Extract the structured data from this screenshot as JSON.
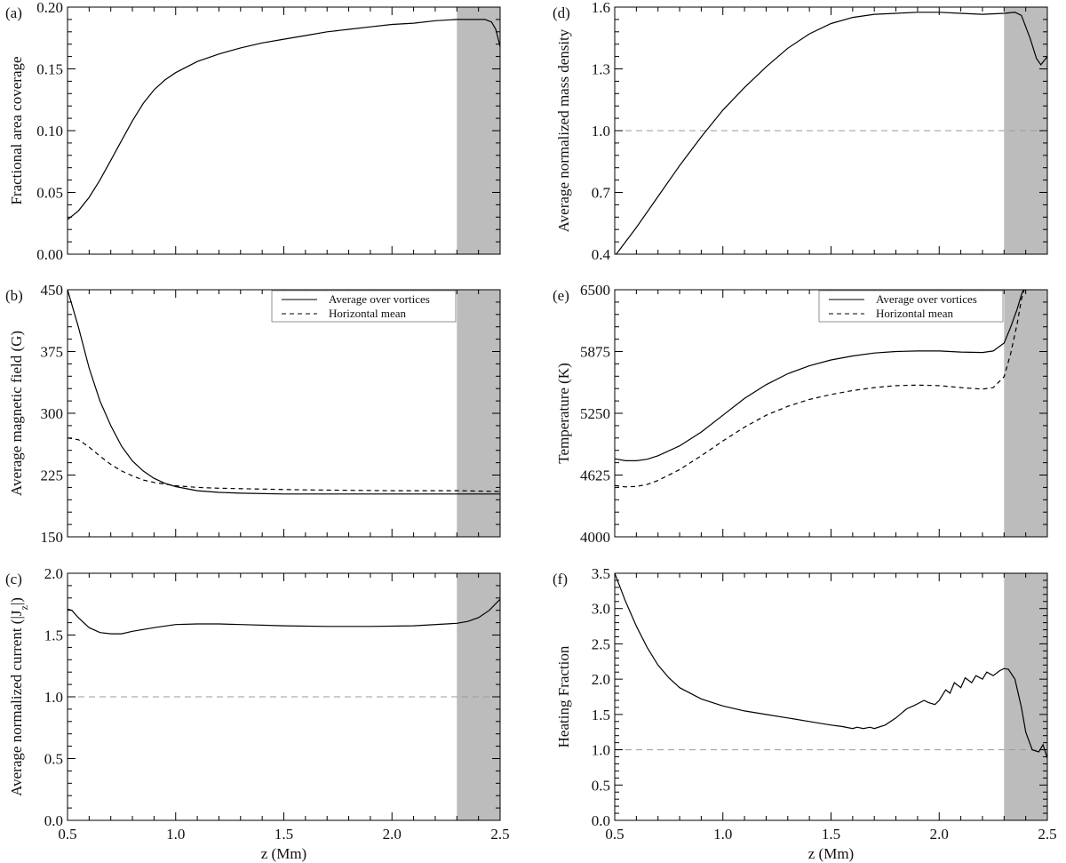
{
  "figure": {
    "xlabel": "z (Mm)",
    "x_ticks": [
      "0.5",
      "1.0",
      "1.5",
      "2.0",
      "2.5"
    ],
    "shade_color": "#bcbcbc",
    "line_color": "#000000",
    "ref_line_color": "#9a9a9a"
  },
  "legend": {
    "solid_label": "Average over vortices",
    "dashed_label": "Horizontal mean"
  },
  "chart_data": [
    {
      "id": "a",
      "panel_label": "(a)",
      "type": "line",
      "ylabel": "Fractional area coverage",
      "xlim": [
        0.5,
        2.5
      ],
      "ylim": [
        0.0,
        0.2
      ],
      "y_ticks": [
        "0.00",
        "0.05",
        "0.10",
        "0.15",
        "0.20"
      ],
      "y_tick_values": [
        0.0,
        0.05,
        0.1,
        0.15,
        0.2
      ],
      "shaded_region": [
        2.3,
        2.5
      ],
      "reference_line": null,
      "series": [
        {
          "name": "Average over vortices",
          "style": "solid",
          "x": [
            0.5,
            0.55,
            0.6,
            0.65,
            0.7,
            0.75,
            0.8,
            0.85,
            0.9,
            0.95,
            1.0,
            1.1,
            1.2,
            1.3,
            1.4,
            1.5,
            1.6,
            1.7,
            1.8,
            1.9,
            2.0,
            2.1,
            2.2,
            2.3,
            2.35,
            2.4,
            2.43,
            2.46,
            2.48,
            2.5
          ],
          "y": [
            0.028,
            0.035,
            0.046,
            0.06,
            0.076,
            0.092,
            0.108,
            0.122,
            0.133,
            0.141,
            0.147,
            0.156,
            0.162,
            0.167,
            0.171,
            0.174,
            0.177,
            0.18,
            0.182,
            0.184,
            0.186,
            0.187,
            0.189,
            0.19,
            0.19,
            0.19,
            0.19,
            0.188,
            0.182,
            0.168
          ]
        }
      ]
    },
    {
      "id": "b",
      "panel_label": "(b)",
      "type": "line",
      "ylabel": "Average magnetic field (G)",
      "xlim": [
        0.5,
        2.5
      ],
      "ylim": [
        150,
        450
      ],
      "y_ticks": [
        "150",
        "225",
        "300",
        "375",
        "450"
      ],
      "y_tick_values": [
        150,
        225,
        300,
        375,
        450
      ],
      "shaded_region": [
        2.3,
        2.5
      ],
      "reference_line": null,
      "legend": true,
      "series": [
        {
          "name": "Average over vortices",
          "style": "solid",
          "x": [
            0.5,
            0.55,
            0.6,
            0.65,
            0.7,
            0.75,
            0.8,
            0.85,
            0.9,
            0.95,
            1.0,
            1.1,
            1.2,
            1.3,
            1.5,
            1.75,
            2.0,
            2.3,
            2.5
          ],
          "y": [
            450,
            405,
            355,
            315,
            285,
            260,
            242,
            230,
            221,
            215,
            211,
            206,
            204,
            203,
            202,
            202,
            202,
            202,
            202
          ]
        },
        {
          "name": "Horizontal mean",
          "style": "dashed",
          "x": [
            0.5,
            0.55,
            0.6,
            0.65,
            0.7,
            0.75,
            0.8,
            0.85,
            0.9,
            1.0,
            1.1,
            1.2,
            1.4,
            1.6,
            2.0,
            2.3,
            2.5
          ],
          "y": [
            270,
            268,
            259,
            248,
            238,
            230,
            224,
            219,
            216,
            212,
            210,
            209,
            208,
            207,
            206,
            206,
            205
          ]
        }
      ]
    },
    {
      "id": "c",
      "panel_label": "(c)",
      "type": "line",
      "ylabel": "Average normalized current (|J_z|)",
      "xlim": [
        0.5,
        2.5
      ],
      "ylim": [
        0.0,
        2.0
      ],
      "y_ticks": [
        "0.0",
        "0.5",
        "1.0",
        "1.5",
        "2.0"
      ],
      "y_tick_values": [
        0.0,
        0.5,
        1.0,
        1.5,
        2.0
      ],
      "shaded_region": [
        2.3,
        2.5
      ],
      "reference_line": 1.0,
      "series": [
        {
          "name": "Average over vortices",
          "style": "solid",
          "x": [
            0.5,
            0.52,
            0.55,
            0.6,
            0.65,
            0.7,
            0.75,
            0.8,
            0.9,
            1.0,
            1.1,
            1.2,
            1.3,
            1.5,
            1.7,
            1.9,
            2.1,
            2.3,
            2.35,
            2.4,
            2.45,
            2.5
          ],
          "y": [
            1.71,
            1.7,
            1.64,
            1.56,
            1.52,
            1.51,
            1.51,
            1.53,
            1.56,
            1.585,
            1.59,
            1.59,
            1.585,
            1.575,
            1.57,
            1.57,
            1.575,
            1.595,
            1.61,
            1.64,
            1.7,
            1.79
          ]
        }
      ]
    },
    {
      "id": "d",
      "panel_label": "(d)",
      "type": "line",
      "ylabel": "Average normalized  mass density",
      "xlim": [
        0.5,
        2.5
      ],
      "ylim": [
        0.4,
        1.6
      ],
      "y_ticks": [
        "0.4",
        "0.7",
        "1.0",
        "1.3",
        "1.6"
      ],
      "y_tick_values": [
        0.4,
        0.7,
        1.0,
        1.3,
        1.6
      ],
      "shaded_region": [
        2.3,
        2.5
      ],
      "reference_line": 1.0,
      "series": [
        {
          "name": "Average over vortices",
          "style": "solid",
          "x": [
            0.5,
            0.6,
            0.7,
            0.8,
            0.9,
            1.0,
            1.1,
            1.2,
            1.3,
            1.4,
            1.5,
            1.6,
            1.7,
            1.8,
            1.9,
            2.0,
            2.1,
            2.2,
            2.3,
            2.35,
            2.38,
            2.42,
            2.45,
            2.47,
            2.5
          ],
          "y": [
            0.39,
            0.53,
            0.68,
            0.83,
            0.97,
            1.1,
            1.21,
            1.31,
            1.4,
            1.47,
            1.52,
            1.55,
            1.565,
            1.57,
            1.575,
            1.575,
            1.57,
            1.565,
            1.57,
            1.575,
            1.56,
            1.45,
            1.35,
            1.32,
            1.36
          ]
        }
      ]
    },
    {
      "id": "e",
      "panel_label": "(e)",
      "type": "line",
      "ylabel": "Temperature (K)",
      "xlim": [
        0.5,
        2.5
      ],
      "ylim": [
        4000,
        6500
      ],
      "y_ticks": [
        "4000",
        "4625",
        "5250",
        "5875",
        "6500"
      ],
      "y_tick_values": [
        4000,
        4625,
        5250,
        5875,
        6500
      ],
      "shaded_region": [
        2.3,
        2.5
      ],
      "reference_line": null,
      "legend": true,
      "series": [
        {
          "name": "Average over vortices",
          "style": "solid",
          "x": [
            0.5,
            0.55,
            0.6,
            0.65,
            0.7,
            0.8,
            0.9,
            1.0,
            1.1,
            1.2,
            1.3,
            1.4,
            1.5,
            1.6,
            1.7,
            1.8,
            1.9,
            2.0,
            2.1,
            2.2,
            2.25,
            2.3,
            2.33,
            2.36,
            2.38,
            2.4
          ],
          "y": [
            4790,
            4770,
            4770,
            4785,
            4820,
            4920,
            5060,
            5230,
            5400,
            5540,
            5650,
            5730,
            5790,
            5830,
            5860,
            5875,
            5880,
            5880,
            5870,
            5865,
            5880,
            5960,
            6120,
            6300,
            6450,
            6560
          ]
        },
        {
          "name": "Horizontal mean",
          "style": "dashed",
          "x": [
            0.5,
            0.55,
            0.6,
            0.65,
            0.7,
            0.8,
            0.9,
            1.0,
            1.1,
            1.2,
            1.3,
            1.4,
            1.5,
            1.6,
            1.7,
            1.8,
            1.9,
            2.0,
            2.1,
            2.2,
            2.25,
            2.3,
            2.33,
            2.36,
            2.38,
            2.4
          ],
          "y": [
            4520,
            4505,
            4510,
            4530,
            4570,
            4680,
            4820,
            4970,
            5110,
            5230,
            5320,
            5390,
            5440,
            5480,
            5510,
            5530,
            5535,
            5530,
            5510,
            5495,
            5510,
            5620,
            5850,
            6150,
            6400,
            6550
          ]
        }
      ]
    },
    {
      "id": "f",
      "panel_label": "(f)",
      "type": "line",
      "ylabel": "Heating Fraction",
      "xlim": [
        0.5,
        2.5
      ],
      "ylim": [
        0.0,
        3.5
      ],
      "y_ticks": [
        "0.0",
        "0.5",
        "1.0",
        "1.5",
        "2.0",
        "2.5",
        "3.0",
        "3.5"
      ],
      "y_tick_values": [
        0.0,
        0.5,
        1.0,
        1.5,
        2.0,
        2.5,
        3.0,
        3.5
      ],
      "shaded_region": [
        2.3,
        2.5
      ],
      "reference_line": 1.0,
      "series": [
        {
          "name": "Average over vortices",
          "style": "solid",
          "x": [
            0.5,
            0.55,
            0.6,
            0.65,
            0.7,
            0.75,
            0.8,
            0.9,
            1.0,
            1.1,
            1.2,
            1.3,
            1.4,
            1.5,
            1.55,
            1.6,
            1.62,
            1.65,
            1.68,
            1.7,
            1.75,
            1.8,
            1.85,
            1.88,
            1.9,
            1.93,
            1.95,
            1.98,
            2.0,
            2.03,
            2.05,
            2.07,
            2.1,
            2.12,
            2.15,
            2.17,
            2.2,
            2.22,
            2.25,
            2.28,
            2.3,
            2.32,
            2.35,
            2.38,
            2.4,
            2.43,
            2.46,
            2.48,
            2.5
          ],
          "y": [
            3.5,
            3.1,
            2.75,
            2.45,
            2.2,
            2.02,
            1.88,
            1.72,
            1.62,
            1.55,
            1.5,
            1.45,
            1.4,
            1.35,
            1.33,
            1.3,
            1.32,
            1.3,
            1.32,
            1.3,
            1.35,
            1.45,
            1.58,
            1.62,
            1.65,
            1.7,
            1.67,
            1.64,
            1.7,
            1.85,
            1.8,
            1.95,
            1.88,
            2.02,
            1.95,
            2.05,
            2.0,
            2.1,
            2.05,
            2.12,
            2.15,
            2.14,
            2.0,
            1.6,
            1.25,
            1.0,
            0.97,
            1.07,
            0.88
          ]
        }
      ]
    }
  ]
}
